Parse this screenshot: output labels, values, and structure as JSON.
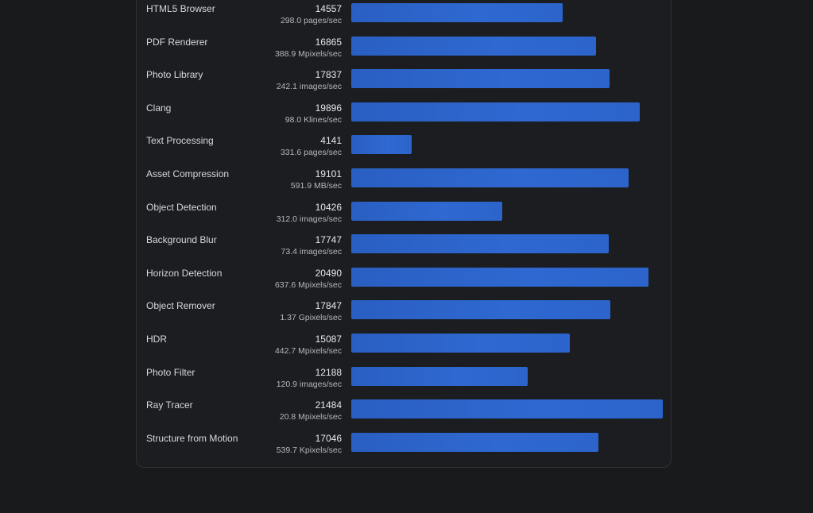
{
  "colors": {
    "background": "#181a1c",
    "card_background": "#1b1d20",
    "card_border": "#2e3236",
    "bar": "#2c64cb",
    "label_text": "#d6d9dc",
    "rate_text": "#b4b8bc"
  },
  "chart_data": {
    "type": "bar",
    "orientation": "horizontal",
    "grid": false,
    "xlim": [
      0,
      21484
    ],
    "categories": [
      "HTML5 Browser",
      "PDF Renderer",
      "Photo Library",
      "Clang",
      "Text Processing",
      "Asset Compression",
      "Object Detection",
      "Background Blur",
      "Horizon Detection",
      "Object Remover",
      "HDR",
      "Photo Filter",
      "Ray Tracer",
      "Structure from Motion"
    ],
    "values": [
      14557,
      16865,
      17837,
      19896,
      4141,
      19101,
      10426,
      17747,
      20490,
      17847,
      15087,
      12188,
      21484,
      17046
    ],
    "value_labels": [
      "14557",
      "16865",
      "17837",
      "19896",
      "4141",
      "19101",
      "10426",
      "17747",
      "20490",
      "17847",
      "15087",
      "12188",
      "21484",
      "17046"
    ],
    "rates": [
      "298.0 pages/sec",
      "388.9 Mpixels/sec",
      "242.1 images/sec",
      "98.0 Klines/sec",
      "331.6 pages/sec",
      "591.9 MB/sec",
      "312.0 images/sec",
      "73.4 images/sec",
      "637.6 Mpixels/sec",
      "1.37 Gpixels/sec",
      "442.7 Mpixels/sec",
      "120.9 images/sec",
      "20.8 Mpixels/sec",
      "539.7 Kpixels/sec"
    ]
  }
}
